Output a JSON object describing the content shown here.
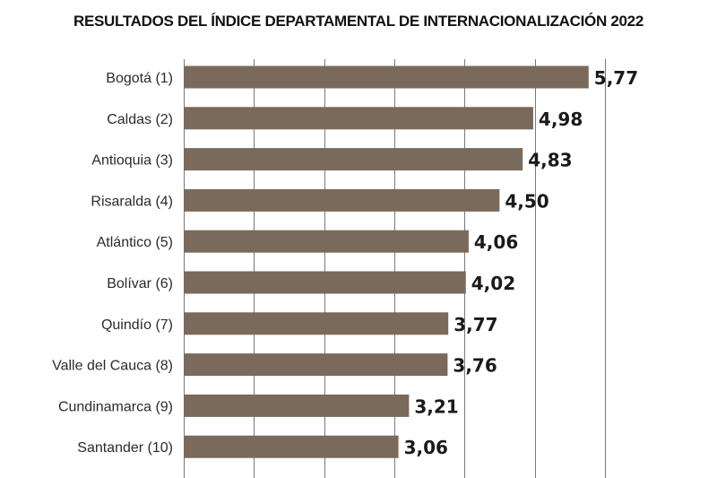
{
  "chart_data": {
    "type": "bar",
    "orientation": "horizontal",
    "title": "RESULTADOS DEL ÍNDICE DEPARTAMENTAL DE INTERNACIONALIZACIÓN 2022",
    "categories": [
      "Bogotá  (1)",
      "Caldas  (2)",
      "Antioquia  (3)",
      "Risaralda  (4)",
      "Atlántico  (5)",
      "Bolívar  (6)",
      "Quindío  (7)",
      "Valle del Cauca  (8)",
      "Cundinamarca  (9)",
      "Santander  (10)"
    ],
    "values": [
      5.77,
      4.98,
      4.83,
      4.5,
      4.06,
      4.02,
      3.77,
      3.76,
      3.21,
      3.06
    ],
    "value_labels": [
      "5,77",
      "4,98",
      "4,83",
      "4,50",
      "4,06",
      "4,02",
      "3,77",
      "3,76",
      "3,21",
      "3,06"
    ],
    "xlim": [
      0,
      6
    ],
    "gridlines": [
      1,
      2,
      3,
      4,
      5,
      6
    ],
    "grid": true,
    "bar_color": "#7a6a5c"
  }
}
